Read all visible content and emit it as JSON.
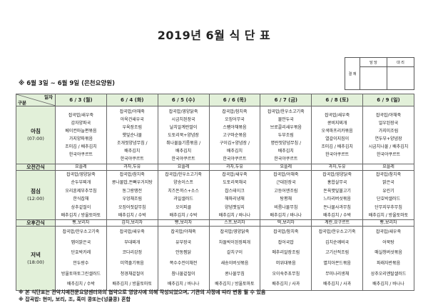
{
  "title": "2019년 6월 식 단 표",
  "approval": {
    "label": "결 재",
    "col1": "담 당",
    "col2": "대 리"
  },
  "subtitle": "※ 6월 3일 ~ 6월 9일 (은천요양원)",
  "corner": {
    "top": "일자",
    "bottom": "구분"
  },
  "days": [
    "6 / 3 (월)",
    "6 / 4 (화)",
    "6 / 5 (수)",
    "6 / 6 (목)",
    "6 / 7 (금)",
    "6 / 8 (토)",
    "6 / 9 (일)"
  ],
  "meals": [
    {
      "name": "아침",
      "time": "(07:00)",
      "key": "breakfast",
      "cells": [
        [
          "잡곡밥/새우죽",
          "감자양파국",
          "베이컨마늘편볶음",
          "가지양파볶음",
          "조미김 / 배추김치",
          "한국야쿠르트"
        ],
        [
          "잡곡밥/야채죽",
          "아욱건새우국",
          "우육장조림",
          "햇잎순나물",
          "조개젓양념무침 /",
          "배추김치",
          "한국야쿠르트"
        ],
        [
          "잡곡밥/영양닭죽",
          "시금치된장국",
          "날치알계란말이",
          "도토리묵+양념장",
          "취나물들기름볶음 /",
          "배추김치",
          "한국야쿠르트"
        ],
        [
          "잡곡밥/참치죽",
          "오징어무국",
          "스팸야채볶음",
          "고구마순볶음",
          "구이김+양념장 /",
          "배추김치",
          "한국야쿠르트"
        ],
        [
          "잡곡밥/한우소고기죽",
          "물만두국",
          "브로콜리새우볶음",
          "두부조림",
          "명란젓양념무침 /",
          "배추김치",
          "한국야쿠르트"
        ],
        [
          "잡곡밥/새우죽",
          "콩비지찌개",
          "오색파프리카볶음",
          "열갈이지짐이",
          "조미김 / 배추김치",
          "한국야쿠르트"
        ],
        [
          "잡곡밥/야채죽",
          "얼우된장국",
          "가지미조림",
          "연두부+양념장",
          "시금치나물 / 배추김치",
          "한국야쿠르트"
        ]
      ]
    },
    {
      "name": "오전간식",
      "key": "am-snack",
      "snack": true,
      "cells": [
        "요플레",
        "과자,두유",
        "요플레",
        "과자,두유",
        "요플레",
        "과자,두유",
        "요플레"
      ]
    },
    {
      "name": "점심",
      "time": "(12:00)",
      "key": "lunch",
      "cells": [
        [
          "잡곡밥/영양닭죽",
          "순두부찌개",
          "오리훈제부추무침",
          "한식잡채",
          "상추겉절이",
          "배추김치 / 방울토마토"
        ],
        [
          "잡곡밥/참치죽",
          "콩나물밥,돈뼈우거지탕",
          "동그랑땡전",
          "우엉채조림",
          "오징어젓갈무침",
          "배추김치 / 수박"
        ],
        [
          "잡곡밥/한우소고기죽",
          "양송이스프",
          "치즈돈까스+소스",
          "과일샐러드",
          "오이피클",
          "배추김치 / 수박"
        ],
        [
          "잡곡밥/새우죽",
          "도토리묵채국",
          "찹스테이크",
          "해파리냉채",
          "양념깻잎지",
          "배추김치 / 바나나"
        ],
        [
          "잡곡밥/야채죽",
          "근대된장국",
          "고등어엔조림",
          "탕평채",
          "비름나물무침",
          "배추김치 / 바나나"
        ],
        [
          "잡곡밥/영양닭죽",
          "홍합살무국",
          "돈육깻잎불고기",
          "느타리버섯볶음",
          "돈나물사과무침",
          "배추김치 / 수박"
        ],
        [
          "잡곡밥/참치죽",
          "맑은국",
          "유린기",
          "단호박샐러드",
          "단무지부추무침",
          "배추김치 / 방울토마토"
        ]
      ]
    },
    {
      "name": "오후간식",
      "key": "pm-snack",
      "snack": true,
      "cells": [
        "빵,보리차",
        "감자,보리차",
        "빵,보리차",
        "스프,보리차",
        "떡,보리차",
        "계란,요구르트",
        "빵,보리차"
      ]
    },
    {
      "name": "저녁",
      "time": "(18:00)",
      "key": "dinner",
      "cells": [
        [
          "잡곡밥/한우소고기죽",
          "맵이맑은국",
          "단호박카레",
          "안두랑수",
          "방울토마토그린샐러드",
          "배추김치 / 수박"
        ],
        [
          "잡곡밥/새우죽",
          "부대찌개",
          "코다리강정",
          "미역줄기볶음",
          "청경채겉절이",
          "배추김치 / 방울토마토"
        ],
        [
          "잡곡밥/야채죽",
          "유부장국",
          "안동찜닭",
          "쪽수수전이채전",
          "참나물겉절이",
          "배추김치 / 바나나"
        ],
        [
          "잡곡밥/영양닭죽",
          "차돌박이된장찌개",
          "갈치구이",
          "새송이버섯볶음",
          "콩나물무침",
          "배추김치 / 방울토마토"
        ],
        [
          "잡곡밥/참치죽",
          "잡어국밥",
          "메추리알장조림",
          "머위대볶음",
          "오이숙주초무침",
          "배추김치 / 사과"
        ],
        [
          "잡곡밥/한우소고기죽",
          "김치순께비국",
          "고기산적조림",
          "멸치아몬드볶음",
          "무미나리생채",
          "배추김치 / 사과"
        ],
        [
          "잡곡밥/새우죽",
          "어묵탕",
          "매실청버섯볶음",
          "파래자반볶음",
          "상추오리엔탈샐러드",
          "배추김치 / 바나나"
        ]
      ]
    }
  ],
  "notes": [
    "※ 본 식단표는 관악치매전문요양센터와의 협약으로 영양사에 의해 작성되었으며, 기관의 사정에 따라 변동 될 수 있음",
    "※ 잡곡밥: 현미, 보리, 조, 흑미 콩또는(넝쿨콩) 혼합"
  ],
  "colors": {
    "header_bg": "#e2f0d9",
    "border": "#666666"
  }
}
